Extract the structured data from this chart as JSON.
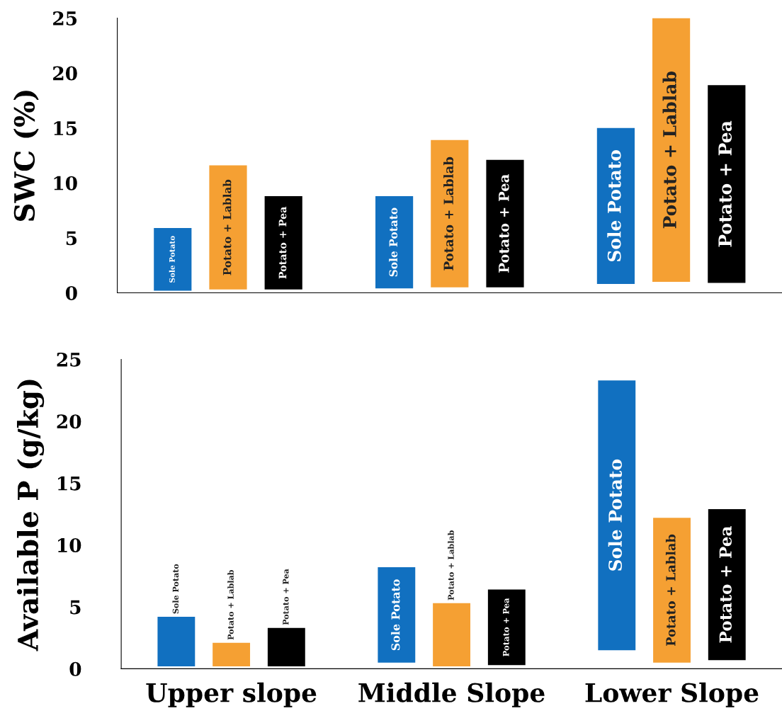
{
  "chart_data": [
    {
      "type": "bar",
      "ylabel": "SWC (%)",
      "categories": [
        null,
        null,
        null
      ],
      "ylim": [
        0,
        25
      ],
      "yticks": [
        0,
        5,
        10,
        15,
        20,
        25
      ],
      "legend": false,
      "grid": false,
      "series": [
        {
          "name": "Sole Potato",
          "color": "#1170c0",
          "base": [
            0.2,
            0.4,
            0.8
          ],
          "values": [
            5.7,
            8.4,
            14.2
          ]
        },
        {
          "name": "Potato + Lablab",
          "color": "#f5a033",
          "base": [
            0.3,
            0.5,
            1.0
          ],
          "values": [
            11.3,
            13.4,
            24.0
          ]
        },
        {
          "name": "Potato + Pea",
          "color": "#000000",
          "base": [
            0.3,
            0.5,
            0.9
          ],
          "values": [
            8.5,
            11.6,
            18.0
          ]
        }
      ]
    },
    {
      "type": "bar",
      "ylabel": "Available P (g/kg)",
      "categories": [
        "Upper slope",
        "Middle Slope",
        "Lower Slope"
      ],
      "ylim": [
        0,
        25
      ],
      "yticks": [
        0,
        5,
        10,
        15,
        20,
        25
      ],
      "legend": false,
      "grid": false,
      "series": [
        {
          "name": "Sole Potato",
          "color": "#1170c0",
          "base": [
            0.2,
            0.5,
            1.5
          ],
          "values": [
            4.0,
            7.7,
            21.8
          ]
        },
        {
          "name": "Potato + Lablab",
          "color": "#f5a033",
          "base": [
            0.2,
            0.2,
            0.5
          ],
          "values": [
            1.9,
            5.1,
            11.7
          ]
        },
        {
          "name": "Potato + Pea",
          "color": "#000000",
          "base": [
            0.2,
            0.3,
            0.7
          ],
          "values": [
            3.1,
            6.1,
            12.2
          ]
        }
      ]
    }
  ]
}
